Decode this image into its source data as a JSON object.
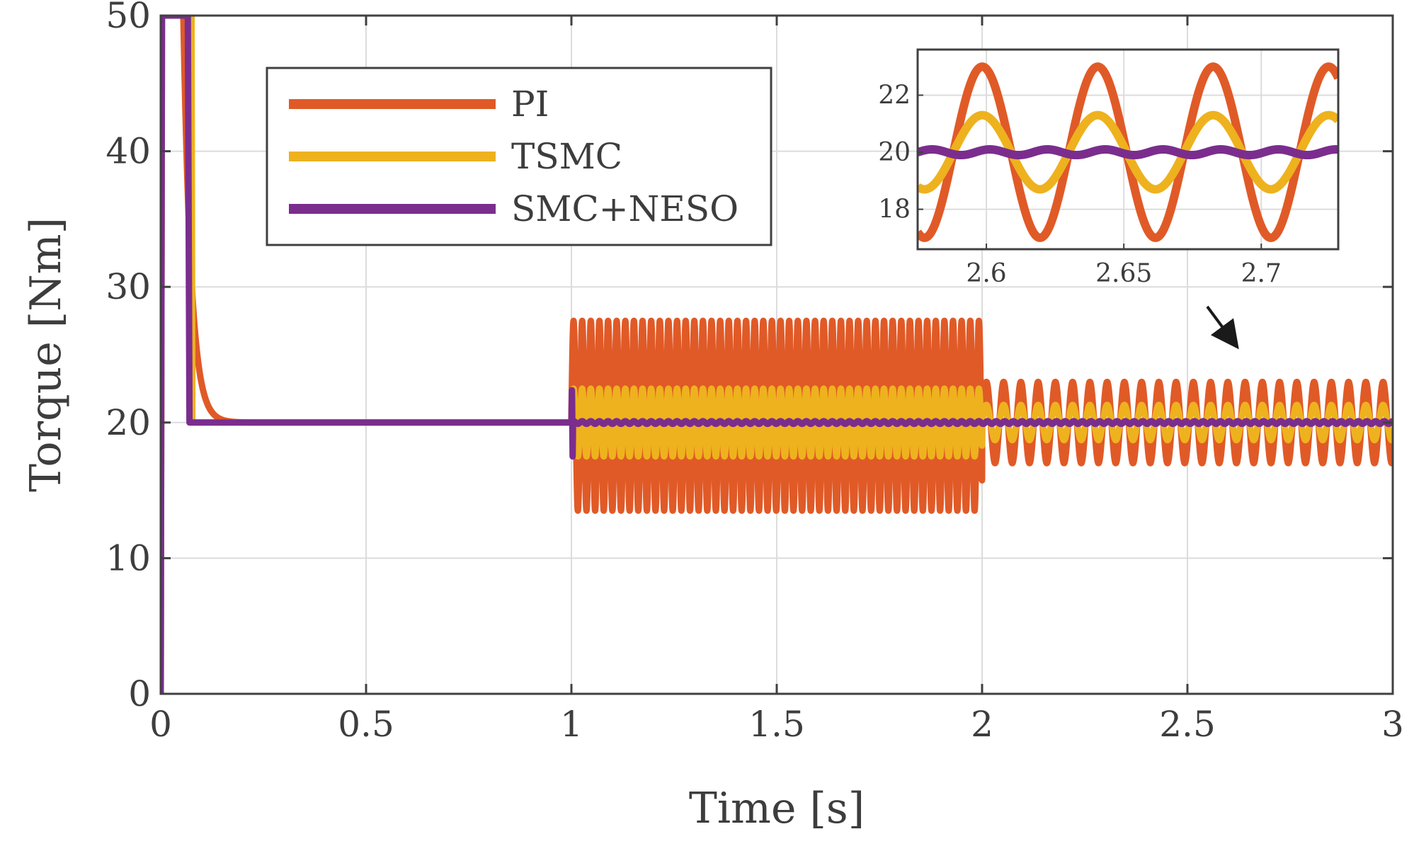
{
  "chart_data": {
    "type": "line",
    "main": {
      "xlabel": "Time [s]",
      "ylabel": "Torque [Nm]",
      "xlim": [
        0,
        3
      ],
      "ylim": [
        0,
        50
      ],
      "xticks": [
        0,
        0.5,
        1,
        1.5,
        2,
        2.5,
        3
      ],
      "xtick_labels": [
        "0",
        "0.5",
        "1",
        "1.5",
        "2",
        "2.5",
        "3"
      ],
      "yticks": [
        0,
        10,
        20,
        30,
        40,
        50
      ],
      "ytick_labels": [
        "0",
        "10",
        "20",
        "30",
        "40",
        "50"
      ],
      "grid": true,
      "legend_position": "top-left"
    },
    "series": [
      {
        "name": "PI",
        "color": "#e05a27",
        "startup": {
          "peak": 50,
          "peak_until": 0.055,
          "settle_time": 0.15,
          "steady": 20
        },
        "segments": [
          {
            "t_start": 1.0,
            "t_end": 2.0,
            "mean": 20.5,
            "amplitude": 7.0,
            "period": 0.021
          },
          {
            "t_start": 2.0,
            "t_end": 3.0,
            "mean": 20.0,
            "amplitude": 3.0,
            "period": 0.042
          }
        ]
      },
      {
        "name": "TSMC",
        "color": "#eeb21e",
        "startup": {
          "peak": 50,
          "peak_until": 0.075,
          "drop_time": 0.077,
          "steady": 20
        },
        "segments": [
          {
            "t_start": 1.0,
            "t_end": 2.0,
            "mean": 20.0,
            "amplitude": 2.5,
            "period": 0.021
          },
          {
            "t_start": 2.0,
            "t_end": 3.0,
            "mean": 20.0,
            "amplitude": 1.3,
            "period": 0.042
          }
        ]
      },
      {
        "name": "SMC+NESO",
        "color": "#7b2d8e",
        "startup": {
          "peak": 50,
          "peak_until": 0.066,
          "drop_time": 0.07,
          "steady": 20
        },
        "segments": [
          {
            "t_start": 1.0,
            "t_end": 3.0,
            "mean": 20.0,
            "amplitude": 0.1,
            "period": 0.021
          }
        ],
        "transient_at_1s": [
          17.5,
          22.5
        ]
      }
    ],
    "inset": {
      "xlim": [
        2.575,
        2.728
      ],
      "ylim": [
        16.6,
        23.6
      ],
      "xticks": [
        2.6,
        2.65,
        2.7
      ],
      "xtick_labels": [
        "2.6",
        "2.65",
        "2.7"
      ],
      "yticks": [
        18,
        20,
        22
      ],
      "ytick_labels": [
        "18",
        "20",
        "22"
      ],
      "grid": true,
      "arrow_points_to": "main plot near t = 2.65 s"
    }
  }
}
